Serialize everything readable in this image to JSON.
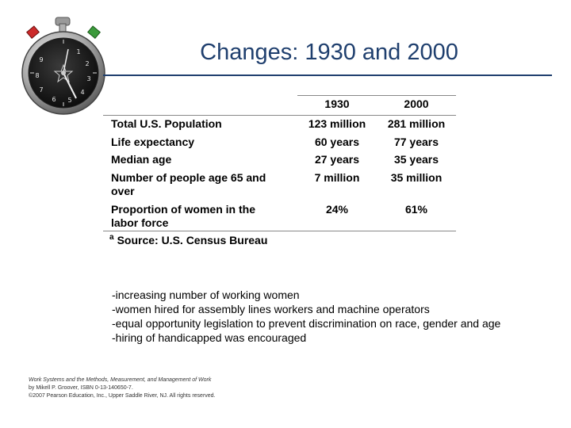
{
  "slide": {
    "title": "Changes: 1930 and 2000"
  },
  "stopwatch": {
    "icon": "stopwatch-icon",
    "dial_numbers": [
      "1",
      "2",
      "3",
      "4",
      "5",
      "6",
      "7",
      "8",
      "9"
    ]
  },
  "table": {
    "columns": [
      "1930",
      "2000"
    ],
    "rows": [
      {
        "label": "Total U.S. Population",
        "v1930": "123 million",
        "v2000": "281 million"
      },
      {
        "label": "Life expectancy",
        "v1930": "60 years",
        "v2000": "77 years"
      },
      {
        "label": "Median age",
        "v1930": "27 years",
        "v2000": "35 years"
      },
      {
        "label": "Number of people age 65 and over",
        "v1930": "7 million",
        "v2000": "35 million"
      },
      {
        "label": "Proportion of women in the labor force",
        "v1930": "24%",
        "v2000": "61%"
      }
    ],
    "source_marker": "a",
    "source": "Source: U.S. Census Bureau"
  },
  "notes": [
    "-increasing number of working women",
    "-women hired for assembly lines workers and machine operators",
    "-equal opportunity legislation to prevent discrimination on race, gender and age",
    "-hiring of handicapped was encouraged"
  ],
  "footer": {
    "line1": "Work Systems and the Methods, Measurement, and Management of Work",
    "line2": "by Mikell P. Groover, ISBN 0-13-140650-7.",
    "line3": "©2007 Pearson Education, Inc., Upper Saddle River, NJ.  All rights reserved."
  }
}
